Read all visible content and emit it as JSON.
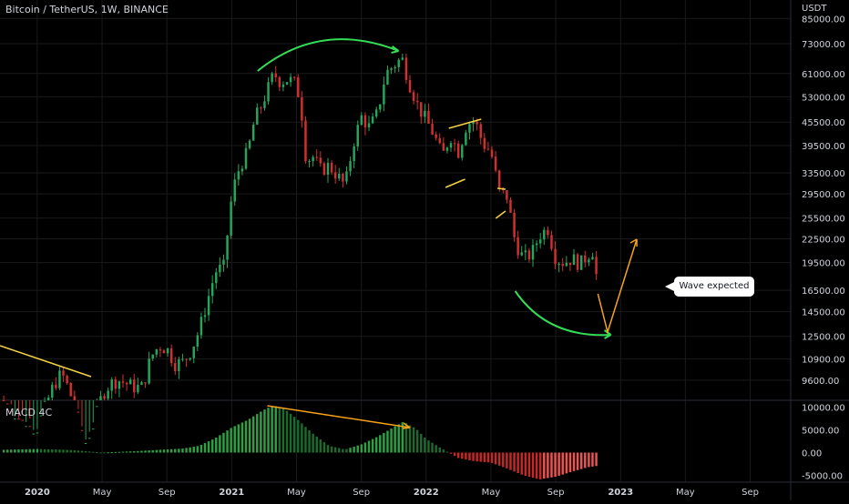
{
  "chart_title": "Bitcoin / TetherUS, 1W, BINANCE",
  "price_unit": "USDT",
  "indicator_label": "MACD 4C",
  "callout_text": "Wave expected",
  "colors": {
    "up": "#26a65b",
    "down": "#d32f2f",
    "macd_up": "#2ea043",
    "macd_down": "#c62828",
    "annot_green": "#33dd55",
    "annot_orange": "#f7a21b",
    "annot_yellow": "#f5d442",
    "grid": "#1a1a1a",
    "text": "#d1d4dc"
  },
  "chart_data": {
    "type": "candlestick",
    "scale": "log",
    "price_ylim": [
      8500,
      95000
    ],
    "price_ticks": [
      "85000.00",
      "73000.00",
      "61000.00",
      "53000.00",
      "45500.00",
      "39500.00",
      "33500.00",
      "29500.00",
      "25500.00",
      "22500.00",
      "19500.00",
      "16500.00",
      "14500.00",
      "12500.00",
      "10900.00",
      "9600.00"
    ],
    "x_ticks": [
      "2020",
      "May",
      "Sep",
      "2021",
      "May",
      "Sep",
      "2022",
      "May",
      "Sep",
      "2023",
      "May",
      "Sep"
    ],
    "x_tick_months": [
      0,
      4,
      8,
      12,
      16,
      20,
      24,
      28,
      32,
      36,
      40,
      44
    ],
    "x_range_months": [
      -2.3,
      46.5
    ],
    "series_monthly_close": [
      [
        -2.3,
        8500
      ],
      [
        -2,
        8300
      ],
      [
        -1.5,
        7800
      ],
      [
        -1,
        7300
      ],
      [
        -0.5,
        7200
      ],
      [
        0,
        7200
      ],
      [
        0.5,
        8200
      ],
      [
        1,
        9300
      ],
      [
        1.5,
        10000
      ],
      [
        2,
        9000
      ],
      [
        2.3,
        8000
      ],
      [
        2.6,
        6500
      ],
      [
        3,
        6600
      ],
      [
        3.5,
        7400
      ],
      [
        4,
        8800
      ],
      [
        4.5,
        9400
      ],
      [
        5,
        9600
      ],
      [
        5.5,
        9400
      ],
      [
        6,
        9200
      ],
      [
        6.5,
        9200
      ],
      [
        7,
        11000
      ],
      [
        7.5,
        11800
      ],
      [
        8,
        11600
      ],
      [
        8.5,
        10600
      ],
      [
        9,
        10700
      ],
      [
        9.5,
        11500
      ],
      [
        10,
        13000
      ],
      [
        10.5,
        15500
      ],
      [
        11,
        18500
      ],
      [
        11.5,
        19000
      ],
      [
        12,
        29000
      ],
      [
        12.3,
        33000
      ],
      [
        12.6,
        35500
      ],
      [
        13,
        38000
      ],
      [
        13.4,
        46000
      ],
      [
        13.8,
        50000
      ],
      [
        14.2,
        55000
      ],
      [
        14.6,
        61000
      ],
      [
        15,
        58000
      ],
      [
        15.5,
        59000
      ],
      [
        16,
        57000
      ],
      [
        16.3,
        49000
      ],
      [
        16.6,
        36000
      ],
      [
        17,
        37000
      ],
      [
        17.5,
        34000
      ],
      [
        18,
        35000
      ],
      [
        18.5,
        33000
      ],
      [
        19,
        31000
      ],
      [
        19.5,
        40000
      ],
      [
        20,
        47000
      ],
      [
        20.5,
        44000
      ],
      [
        21,
        48000
      ],
      [
        21.5,
        61000
      ],
      [
        22,
        64000
      ],
      [
        22.5,
        67000
      ],
      [
        23,
        57000
      ],
      [
        23.5,
        50000
      ],
      [
        24,
        46000
      ],
      [
        24.5,
        42000
      ],
      [
        25,
        37000
      ],
      [
        25.5,
        42000
      ],
      [
        26,
        38000
      ],
      [
        26.5,
        45000
      ],
      [
        27,
        46000
      ],
      [
        27.5,
        40000
      ],
      [
        28,
        38000
      ],
      [
        28.5,
        30000
      ],
      [
        29,
        29000
      ],
      [
        29.5,
        22000
      ],
      [
        30,
        20000
      ],
      [
        30.5,
        20500
      ],
      [
        31,
        23000
      ],
      [
        31.5,
        24000
      ],
      [
        32,
        20000
      ],
      [
        32.5,
        19500
      ],
      [
        33,
        20000
      ],
      [
        33.5,
        19300
      ],
      [
        34,
        20500
      ],
      [
        34.3,
        21000
      ],
      [
        34.6,
        16800
      ]
    ],
    "macd": [
      [
        -2.3,
        600
      ],
      [
        0,
        800
      ],
      [
        2,
        600
      ],
      [
        4,
        0
      ],
      [
        6,
        300
      ],
      [
        8,
        700
      ],
      [
        9,
        900
      ],
      [
        10,
        1500
      ],
      [
        11,
        3200
      ],
      [
        12,
        5500
      ],
      [
        13,
        7200
      ],
      [
        13.8,
        9000
      ],
      [
        14.2,
        9800
      ],
      [
        14.6,
        10300
      ],
      [
        15.2,
        9800
      ],
      [
        16,
        7500
      ],
      [
        17,
        4200
      ],
      [
        18,
        1500
      ],
      [
        19,
        700
      ],
      [
        20,
        1800
      ],
      [
        21,
        3500
      ],
      [
        22,
        5600
      ],
      [
        22.6,
        6800
      ],
      [
        23.4,
        5200
      ],
      [
        24,
        3000
      ],
      [
        25,
        800
      ],
      [
        26,
        -1200
      ],
      [
        27,
        -1900
      ],
      [
        28,
        -2200
      ],
      [
        29,
        -3500
      ],
      [
        30,
        -5000
      ],
      [
        31,
        -5900
      ],
      [
        32,
        -5300
      ],
      [
        33,
        -4200
      ],
      [
        34,
        -3200
      ],
      [
        34.6,
        -2900
      ]
    ],
    "macd_ylim": [
      -6500,
      11500
    ],
    "macd_ticks": [
      "10000.00",
      "5000.00",
      "0.00",
      "-5000.00"
    ],
    "macd_tick_values": [
      10000,
      5000,
      0,
      -5000
    ]
  }
}
